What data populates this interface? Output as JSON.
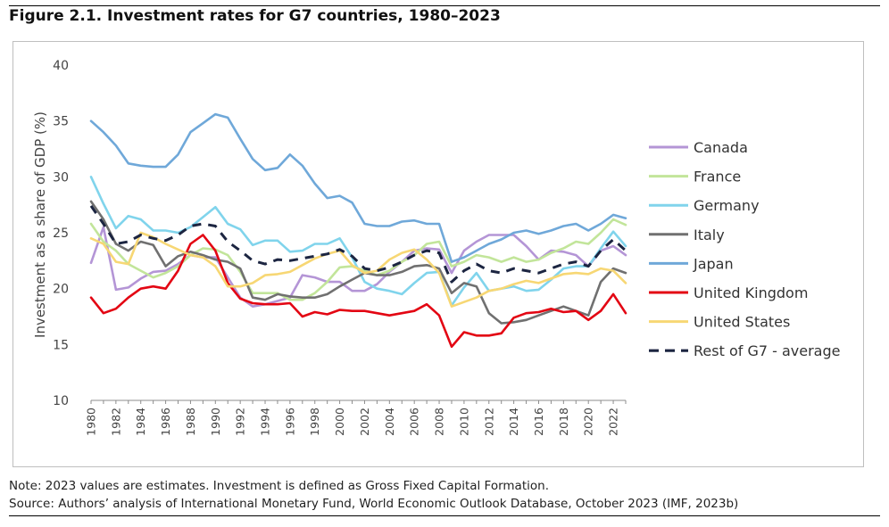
{
  "figure_title": "Figure 2.1. Investment rates for G7 countries, 1980–2023",
  "notes": {
    "note": "Note: 2023 values are estimates. Investment is defined as Gross Fixed Capital Formation.",
    "source": "Source: Authors’ analysis of International Monetary Fund, World Economic Outlook Database, October 2023 (IMF, 2023b)"
  },
  "chart_data": {
    "type": "line",
    "title": "",
    "xlabel": "",
    "ylabel": "Investment as a share of GDP (%)",
    "ylim": [
      10,
      40
    ],
    "yticks": [
      10,
      15,
      20,
      25,
      30,
      35,
      40
    ],
    "xticks": [
      "1980",
      "1982",
      "1984",
      "1986",
      "1988",
      "1990",
      "1992",
      "1994",
      "1996",
      "1998",
      "2000",
      "2002",
      "2004",
      "2006",
      "2008",
      "2010",
      "2012",
      "2014",
      "2016",
      "2018",
      "2020",
      "2022"
    ],
    "grid": false,
    "legend_position": "right",
    "x": [
      1980,
      1981,
      1982,
      1983,
      1984,
      1985,
      1986,
      1987,
      1988,
      1989,
      1990,
      1991,
      1992,
      1993,
      1994,
      1995,
      1996,
      1997,
      1998,
      1999,
      2000,
      2001,
      2002,
      2003,
      2004,
      2005,
      2006,
      2007,
      2008,
      2009,
      2010,
      2011,
      2012,
      2013,
      2014,
      2015,
      2016,
      2017,
      2018,
      2019,
      2020,
      2021,
      2022,
      2023
    ],
    "series": [
      {
        "name": "Canada",
        "color": "#b495d6",
        "dashed": false,
        "values": [
          22.3,
          25.5,
          19.9,
          20.1,
          20.9,
          21.5,
          21.6,
          22.2,
          23.0,
          22.8,
          22.8,
          21.0,
          19.2,
          18.4,
          18.6,
          18.9,
          19.2,
          21.2,
          21.0,
          20.6,
          20.6,
          19.8,
          19.8,
          20.4,
          21.5,
          22.4,
          23.4,
          23.6,
          23.5,
          21.4,
          23.4,
          24.2,
          24.8,
          24.8,
          24.8,
          23.8,
          22.6,
          23.4,
          23.3,
          23.0,
          22.0,
          23.4,
          23.8,
          23.0
        ]
      },
      {
        "name": "France",
        "color": "#c2e59a",
        "dashed": false,
        "values": [
          25.8,
          24.2,
          23.4,
          22.2,
          21.6,
          21.0,
          21.4,
          22.0,
          23.0,
          23.6,
          23.5,
          23.0,
          21.5,
          19.6,
          19.6,
          19.6,
          19.0,
          19.0,
          19.6,
          20.6,
          21.9,
          22.0,
          21.6,
          21.2,
          21.6,
          22.4,
          23.0,
          24.0,
          24.2,
          22.0,
          22.4,
          23.0,
          22.8,
          22.4,
          22.8,
          22.4,
          22.6,
          23.2,
          23.6,
          24.2,
          24.0,
          25.0,
          26.2,
          25.7
        ]
      },
      {
        "name": "Germany",
        "color": "#80d4ec",
        "dashed": false,
        "values": [
          30.0,
          27.6,
          25.4,
          26.5,
          26.2,
          25.2,
          25.2,
          25.0,
          25.5,
          26.4,
          27.3,
          25.8,
          25.3,
          23.9,
          24.3,
          24.3,
          23.3,
          23.4,
          24.0,
          24.0,
          24.5,
          22.8,
          20.6,
          20.0,
          19.8,
          19.5,
          20.5,
          21.4,
          21.5,
          18.5,
          20.1,
          21.4,
          19.8,
          20.0,
          20.2,
          19.8,
          19.9,
          20.8,
          21.8,
          22.0,
          22.0,
          23.6,
          25.1,
          23.8
        ]
      },
      {
        "name": "Italy",
        "color": "#707070",
        "dashed": false,
        "values": [
          27.8,
          26.2,
          24.0,
          23.4,
          24.2,
          23.9,
          22.0,
          22.9,
          23.3,
          23.0,
          22.6,
          22.4,
          21.8,
          19.2,
          19.0,
          19.5,
          19.3,
          19.2,
          19.2,
          19.5,
          20.2,
          20.8,
          21.4,
          21.2,
          21.2,
          21.5,
          22.0,
          22.1,
          21.8,
          19.6,
          20.5,
          20.2,
          17.8,
          16.9,
          17.0,
          17.2,
          17.6,
          18.0,
          18.4,
          18.0,
          17.6,
          20.6,
          21.8,
          21.4
        ]
      },
      {
        "name": "Japan",
        "color": "#6fa8d9",
        "dashed": false,
        "values": [
          35.0,
          34.0,
          32.8,
          31.2,
          31.0,
          30.9,
          30.9,
          32.0,
          34.0,
          34.8,
          35.6,
          35.3,
          33.4,
          31.6,
          30.6,
          30.8,
          32.0,
          31.0,
          29.4,
          28.1,
          28.3,
          27.7,
          25.8,
          25.6,
          25.6,
          26.0,
          26.1,
          25.8,
          25.8,
          22.4,
          22.8,
          23.4,
          24.0,
          24.4,
          25.0,
          25.2,
          24.9,
          25.2,
          25.6,
          25.8,
          25.2,
          25.8,
          26.6,
          26.3
        ]
      },
      {
        "name": "United Kingdom",
        "color": "#e30613",
        "dashed": false,
        "values": [
          19.2,
          17.8,
          18.2,
          19.2,
          20.0,
          20.2,
          20.0,
          21.6,
          24.0,
          24.8,
          23.4,
          20.5,
          19.1,
          18.7,
          18.6,
          18.6,
          18.7,
          17.5,
          17.9,
          17.7,
          18.1,
          18.0,
          18.0,
          17.8,
          17.6,
          17.8,
          18.0,
          18.6,
          17.6,
          14.8,
          16.1,
          15.8,
          15.8,
          16.0,
          17.4,
          17.8,
          17.9,
          18.2,
          17.9,
          18.0,
          17.2,
          18.0,
          19.5,
          17.8
        ]
      },
      {
        "name": "United States",
        "color": "#f7d774",
        "dashed": false,
        "values": [
          24.5,
          24.0,
          22.4,
          22.2,
          25.0,
          24.6,
          24.0,
          23.5,
          23.0,
          22.8,
          22.0,
          20.2,
          20.2,
          20.5,
          21.2,
          21.3,
          21.5,
          22.1,
          22.7,
          23.1,
          23.4,
          22.1,
          21.4,
          21.6,
          22.6,
          23.2,
          23.5,
          22.6,
          21.4,
          18.4,
          18.8,
          19.2,
          19.8,
          20.0,
          20.4,
          20.7,
          20.5,
          20.9,
          21.3,
          21.4,
          21.3,
          21.8,
          21.6,
          20.5
        ]
      },
      {
        "name": "Rest of G7 - average",
        "color": "#1c2541",
        "dashed": true,
        "values": [
          27.4,
          25.8,
          24.0,
          24.2,
          24.8,
          24.5,
          24.3,
          24.8,
          25.6,
          25.8,
          25.6,
          24.2,
          23.4,
          22.5,
          22.2,
          22.6,
          22.5,
          22.7,
          22.9,
          23.1,
          23.5,
          22.9,
          21.8,
          21.6,
          21.9,
          22.4,
          23.0,
          23.4,
          23.2,
          20.6,
          21.6,
          22.2,
          21.6,
          21.4,
          21.8,
          21.6,
          21.4,
          21.8,
          22.2,
          22.4,
          22.0,
          23.4,
          24.4,
          23.4
        ]
      }
    ]
  }
}
